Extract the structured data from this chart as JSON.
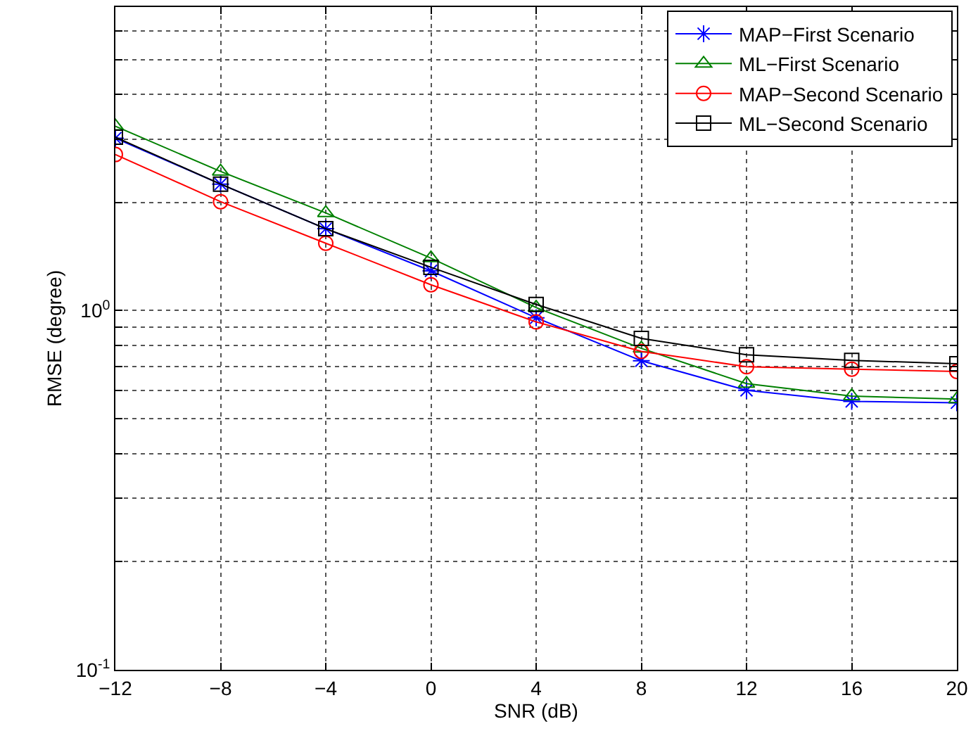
{
  "chart_data": {
    "type": "line",
    "xlabel": "SNR (dB)",
    "ylabel": "RMSE (degree)",
    "x": [
      -12,
      -8,
      -4,
      0,
      4,
      8,
      12,
      16,
      20
    ],
    "xlim": [
      -12,
      20
    ],
    "xticks": [
      -12,
      -8,
      -4,
      0,
      4,
      8,
      12,
      16,
      20
    ],
    "log": true,
    "ylim": [
      0.1,
      7
    ],
    "yticks": [
      {
        "value": 0.1,
        "label": "10$^{-1}$"
      },
      {
        "value": 0.2,
        "label": null
      },
      {
        "value": 0.3,
        "label": null
      },
      {
        "value": 0.4,
        "label": null
      },
      {
        "value": 0.5,
        "label": null
      },
      {
        "value": 0.6,
        "label": null
      },
      {
        "value": 0.7,
        "label": null
      },
      {
        "value": 0.8,
        "label": null
      },
      {
        "value": 0.9,
        "label": null
      },
      {
        "value": 1,
        "label": "10$^{0}$"
      },
      {
        "value": 2,
        "label": null
      },
      {
        "value": 3,
        "label": null
      },
      {
        "value": 4,
        "label": null
      },
      {
        "value": 5,
        "label": null
      },
      {
        "value": 6,
        "label": null
      },
      {
        "value": 7,
        "label": null
      }
    ],
    "grid": true,
    "legend": "top right",
    "line_style": "solid",
    "series": [
      {
        "name": "MAP−First Scenario",
        "color": "#0000ff",
        "marker": "cross",
        "values": [
          3.02,
          2.25,
          1.69,
          1.29,
          0.955,
          0.725,
          0.6,
          0.559,
          0.554
        ]
      },
      {
        "name": "ML−First Scenario",
        "color": "#008000",
        "marker": "triangle",
        "values": [
          3.26,
          2.44,
          1.87,
          1.4,
          1.02,
          0.785,
          0.626,
          0.578,
          0.567
        ]
      },
      {
        "name": "MAP−Second Scenario",
        "color": "#ff0000",
        "marker": "circle",
        "values": [
          2.72,
          2.01,
          1.54,
          1.18,
          0.93,
          0.77,
          0.698,
          0.687,
          0.677
        ]
      },
      {
        "name": "ML−Second Scenario",
        "color": "#000000",
        "marker": "square",
        "values": [
          3.04,
          2.25,
          1.69,
          1.32,
          1.04,
          0.837,
          0.753,
          0.727,
          0.711
        ]
      }
    ]
  }
}
